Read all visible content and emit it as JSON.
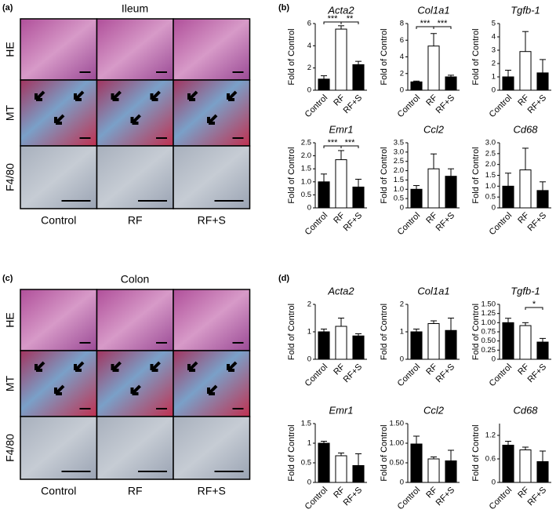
{
  "panels": {
    "a": {
      "label": "(a)",
      "title": "Ileum",
      "rows": [
        "HE",
        "MT",
        "F4/80"
      ],
      "columns": [
        "Control",
        "RF",
        "RF+S"
      ]
    },
    "b": {
      "label": "(b)"
    },
    "c": {
      "label": "(c)",
      "title": "Colon",
      "rows": [
        "HE",
        "MT",
        "F4/80"
      ],
      "columns": [
        "Control",
        "RF",
        "RF+S"
      ]
    },
    "d": {
      "label": "(d)"
    }
  },
  "chart_data": [
    {
      "type": "bar",
      "title": "Acta2",
      "ylabel": "Fold of Control",
      "categories": [
        "Control",
        "RF",
        "RF+S"
      ],
      "values": [
        1.0,
        5.5,
        2.3
      ],
      "errors": [
        0.3,
        0.3,
        0.3
      ],
      "colors": [
        "#000000",
        "#ffffff",
        "#000000"
      ],
      "ylim": [
        0,
        6
      ],
      "yticks": [
        0,
        2,
        4,
        6
      ],
      "annotations": [
        {
          "from": 0,
          "to": 1,
          "label": "***"
        },
        {
          "from": 1,
          "to": 2,
          "label": "**"
        }
      ]
    },
    {
      "type": "bar",
      "title": "Col1a1",
      "ylabel": "Fold of Control",
      "categories": [
        "Control",
        "RF",
        "RF+S"
      ],
      "values": [
        1.0,
        5.3,
        1.6
      ],
      "errors": [
        0.1,
        1.5,
        0.2
      ],
      "colors": [
        "#000000",
        "#ffffff",
        "#000000"
      ],
      "ylim": [
        0,
        8
      ],
      "yticks": [
        0,
        2,
        4,
        6,
        8
      ],
      "annotations": [
        {
          "from": 0,
          "to": 1,
          "label": "***"
        },
        {
          "from": 1,
          "to": 2,
          "label": "***"
        }
      ]
    },
    {
      "type": "bar",
      "title": "Tgfb-1",
      "ylabel": "Fold of Control",
      "categories": [
        "Control",
        "RF",
        "RF+S"
      ],
      "values": [
        1.0,
        2.9,
        1.3
      ],
      "errors": [
        0.5,
        1.5,
        1.0
      ],
      "colors": [
        "#000000",
        "#ffffff",
        "#000000"
      ],
      "ylim": [
        0,
        5
      ],
      "yticks": [
        0,
        1,
        2,
        3,
        4,
        5
      ]
    },
    {
      "type": "bar",
      "title": "Emr1",
      "ylabel": "Fold of Control",
      "categories": [
        "Control",
        "RF",
        "RF+S"
      ],
      "values": [
        1.0,
        1.85,
        0.8
      ],
      "errors": [
        0.3,
        0.35,
        0.3
      ],
      "colors": [
        "#000000",
        "#ffffff",
        "#000000"
      ],
      "ylim": [
        0,
        2.5
      ],
      "yticks": [
        0,
        0.5,
        {
          "value": 1,
          "label": "1.0"
        },
        1.5,
        {
          "value": 2,
          "label": "2.0"
        },
        2.5
      ],
      "annotations": [
        {
          "from": 0,
          "to": 1,
          "label": "***"
        },
        {
          "from": 1,
          "to": 2,
          "label": "***"
        }
      ]
    },
    {
      "type": "bar",
      "title": "Ccl2",
      "ylabel": "Fold of Control",
      "categories": [
        "Control",
        "RF",
        "RF+S"
      ],
      "values": [
        1.0,
        2.1,
        1.7
      ],
      "errors": [
        0.2,
        0.8,
        0.4
      ],
      "colors": [
        "#000000",
        "#ffffff",
        "#000000"
      ],
      "ylim": [
        0,
        3.5
      ],
      "yticks": [
        0,
        0.5,
        {
          "value": 1,
          "label": "1.0"
        },
        1.5,
        {
          "value": 2,
          "label": "2.0"
        },
        2.5,
        {
          "value": 3,
          "label": "3.0"
        },
        3.5
      ]
    },
    {
      "type": "bar",
      "title": "Cd68",
      "ylabel": "Fold of Control",
      "categories": [
        "Control",
        "RF",
        "RF+S"
      ],
      "values": [
        1.0,
        1.75,
        0.8
      ],
      "errors": [
        0.6,
        1.0,
        0.4
      ],
      "colors": [
        "#000000",
        "#ffffff",
        "#000000"
      ],
      "ylim": [
        0,
        3
      ],
      "yticks": [
        0,
        0.5,
        {
          "value": 1,
          "label": "1.0"
        },
        1.5,
        {
          "value": 2,
          "label": "2.0"
        },
        2.5,
        {
          "value": 3,
          "label": "3.0"
        }
      ]
    },
    {
      "type": "bar",
      "title": "Acta2",
      "ylabel": "Fold of Control",
      "categories": [
        "Control",
        "RF",
        "RF+S"
      ],
      "values": [
        1.0,
        1.2,
        0.85
      ],
      "errors": [
        0.1,
        0.3,
        0.08
      ],
      "colors": [
        "#000000",
        "#ffffff",
        "#000000"
      ],
      "ylim": [
        0,
        2
      ],
      "yticks": [
        0,
        1,
        2
      ]
    },
    {
      "type": "bar",
      "title": "Col1a1",
      "ylabel": "Fold of Control",
      "categories": [
        "Control",
        "RF",
        "RF+S"
      ],
      "values": [
        1.0,
        1.3,
        1.05
      ],
      "errors": [
        0.1,
        0.1,
        0.45
      ],
      "colors": [
        "#000000",
        "#ffffff",
        "#000000"
      ],
      "ylim": [
        0,
        2
      ],
      "yticks": [
        0,
        1,
        2
      ]
    },
    {
      "type": "bar",
      "title": "Tgfb-1",
      "ylabel": "Fold of Control",
      "categories": [
        "Control",
        "RF",
        "RF+S"
      ],
      "values": [
        1.0,
        0.92,
        0.47
      ],
      "errors": [
        0.12,
        0.08,
        0.1
      ],
      "colors": [
        "#000000",
        "#ffffff",
        "#000000"
      ],
      "ylim": [
        0,
        1.5
      ],
      "yticks": [
        0,
        0.25,
        {
          "value": 0.5,
          "label": "0.50"
        },
        0.75,
        {
          "value": 1,
          "label": "1.00"
        },
        1.25,
        {
          "value": 1.5,
          "label": "1.50"
        }
      ],
      "annotations": [
        {
          "from": 1,
          "to": 2,
          "label": "*"
        }
      ]
    },
    {
      "type": "bar",
      "title": "Emr1",
      "ylabel": "Fold of Control",
      "categories": [
        "Control",
        "RF",
        "RF+S"
      ],
      "values": [
        1.0,
        0.68,
        0.43
      ],
      "errors": [
        0.05,
        0.07,
        0.3
      ],
      "colors": [
        "#000000",
        "#ffffff",
        "#000000"
      ],
      "ylim": [
        0,
        1.5
      ],
      "yticks": [
        0,
        0.5,
        1,
        1.5
      ]
    },
    {
      "type": "bar",
      "title": "Ccl2",
      "ylabel": "Fold of Control",
      "categories": [
        "Control",
        "RF",
        "RF+S"
      ],
      "values": [
        0.98,
        0.6,
        0.55
      ],
      "errors": [
        0.2,
        0.05,
        0.27
      ],
      "colors": [
        "#000000",
        "#ffffff",
        "#000000"
      ],
      "ylim": [
        0,
        1.5
      ],
      "yticks": [
        0,
        {
          "value": 0.5,
          "label": "0.50"
        },
        {
          "value": 1,
          "label": "1.00"
        },
        {
          "value": 1.5,
          "label": "1.50"
        }
      ]
    },
    {
      "type": "bar",
      "title": "Cd68",
      "ylabel": "Fold of Control",
      "categories": [
        "Control",
        "RF",
        "RF+S"
      ],
      "values": [
        0.95,
        0.83,
        0.53
      ],
      "errors": [
        0.1,
        0.07,
        0.27
      ],
      "colors": [
        "#000000",
        "#ffffff",
        "#000000"
      ],
      "ylim": [
        0,
        1.5
      ],
      "yticks": [
        0,
        0.6,
        1.2
      ]
    }
  ]
}
